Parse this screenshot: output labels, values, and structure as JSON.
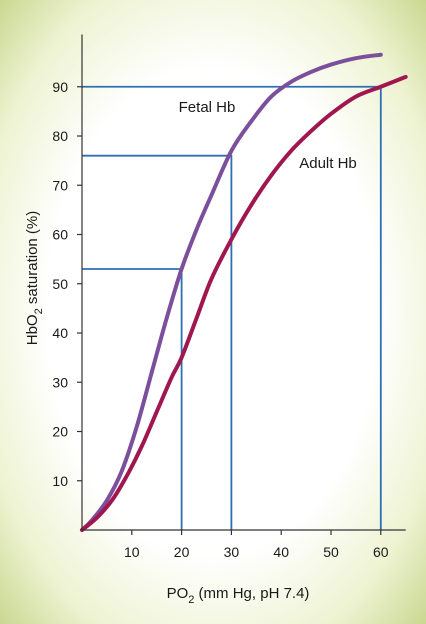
{
  "chart_data": {
    "type": "line",
    "title": "",
    "xlabel": "PO",
    "xlabel_subscript": "2",
    "xlabel_suffix": " (mm Hg, pH 7.4)",
    "ylabel": "HbO",
    "ylabel_subscript": "2",
    "ylabel_suffix": " saturation (%)",
    "xlim": [
      0,
      65
    ],
    "ylim": [
      0,
      100
    ],
    "x_ticks": [
      10,
      20,
      30,
      40,
      50,
      60
    ],
    "y_ticks": [
      10,
      20,
      30,
      40,
      50,
      60,
      70,
      80,
      90
    ],
    "grid": false,
    "series": [
      {
        "name": "Fetal Hb",
        "color": "#7b4f9c",
        "x": [
          0,
          2,
          5,
          8,
          11,
          14,
          17,
          20,
          23,
          26,
          30,
          34,
          38,
          42,
          46,
          50,
          55,
          60
        ],
        "y": [
          0,
          2,
          6,
          12,
          21,
          32,
          43,
          53,
          61,
          68,
          77,
          83,
          88,
          91,
          93,
          94.5,
          95.8,
          96.5
        ]
      },
      {
        "name": "Adult Hb",
        "color": "#a0174f",
        "x": [
          0,
          3,
          6,
          9,
          12,
          15,
          18,
          20,
          23,
          26,
          30,
          34,
          38,
          42,
          46,
          50,
          55,
          60,
          65
        ],
        "y": [
          0,
          2.5,
          6,
          11,
          17,
          24,
          31,
          35,
          43,
          51,
          59,
          66,
          72,
          77,
          81,
          84.5,
          88,
          90,
          92
        ]
      }
    ],
    "reference_lines": [
      {
        "x": 20,
        "y": 53
      },
      {
        "x": 30,
        "y": 76
      },
      {
        "x": 60,
        "y": 90
      }
    ],
    "reference_color": "#2e6fb4"
  }
}
